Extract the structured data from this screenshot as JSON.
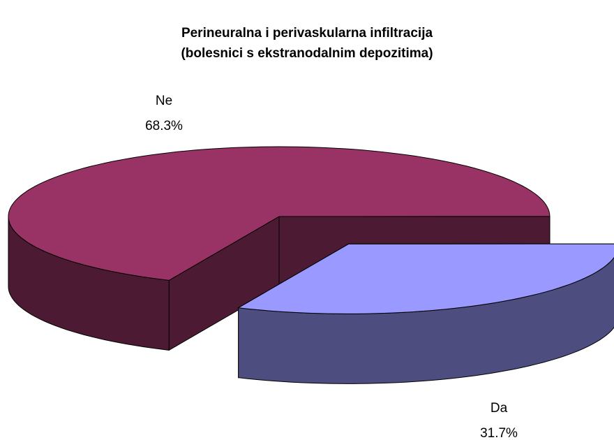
{
  "chart_data": {
    "type": "pie",
    "title": "Perineuralna i perivaskularna infiltracija",
    "subtitle": "(bolesnici s ekstranodalnim depozitima)",
    "categories": [
      "Ne",
      "Da"
    ],
    "values": [
      68.3,
      31.7
    ],
    "value_labels": [
      "68.3%",
      "31.7%"
    ],
    "colors": [
      "#993366",
      "#9999ff"
    ]
  }
}
